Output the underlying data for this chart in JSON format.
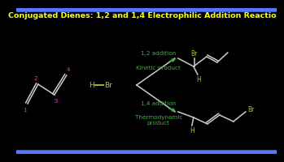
{
  "title": "Conjugated Dienes: 1,2 and 1,4 Electrophilic Addition Reactio",
  "bg_color": "#000000",
  "title_color": "#FFFF00",
  "title_fontsize": 6.8,
  "bond_color": "#CCCCCC",
  "label_color_purple": "#CC44CC",
  "label_color_yellow": "#BBBB44",
  "label_color_green": "#44AA44",
  "hbr_color": "#BBBB44",
  "arrow_color": "#44AA44",
  "border_color": "#5577FF",
  "border_lw": 4
}
